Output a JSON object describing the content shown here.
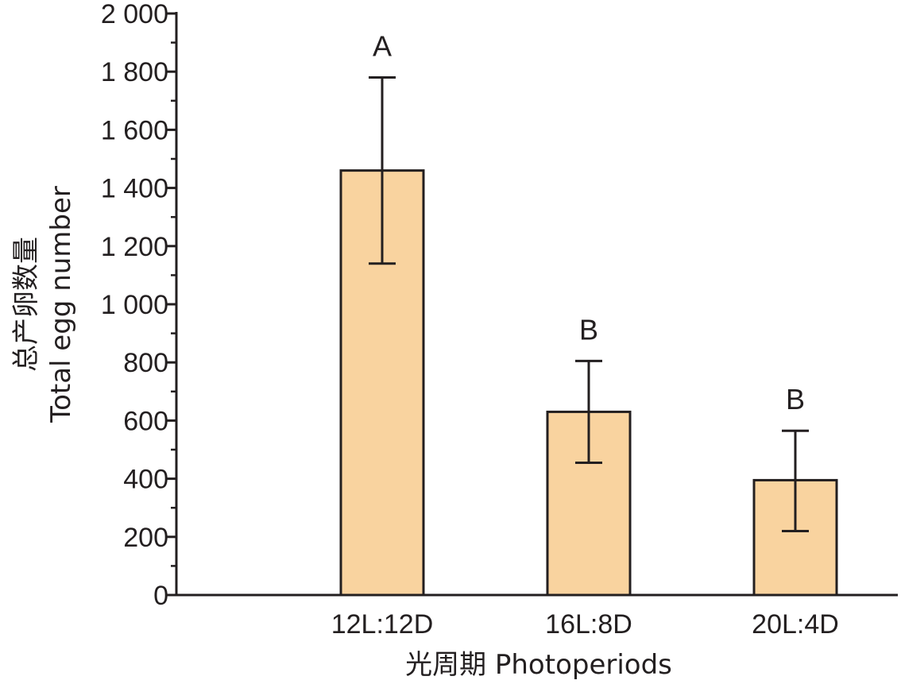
{
  "colors": {
    "bar_fill": "#f9d39f",
    "stroke": "#231f20"
  },
  "chart_data": {
    "type": "bar",
    "categories": [
      "12L:12D",
      "16L:8D",
      "20L:4D"
    ],
    "values": [
      1460,
      630,
      395
    ],
    "error_upper": [
      1780,
      805,
      565
    ],
    "error_lower": [
      1140,
      455,
      220
    ],
    "significance_letters": [
      "A",
      "B",
      "B"
    ],
    "xlabel": "光周期 Photoperiods",
    "ylabel_line1": "总产卵数量",
    "ylabel_line2": "Total egg number",
    "ylim": [
      0,
      2000
    ],
    "yticks": [
      0,
      200,
      400,
      600,
      800,
      1000,
      1200,
      1400,
      1600,
      1800,
      2000
    ],
    "ytick_labels": [
      "0",
      "200",
      "400",
      "600",
      "800",
      "1 000",
      "1 200",
      "1 400",
      "1 600",
      "1 800",
      "2 000"
    ],
    "minor_tick_step": 100,
    "grid": false,
    "legend": "none"
  }
}
